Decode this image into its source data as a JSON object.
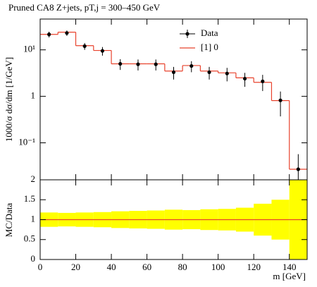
{
  "chart_data": [
    {
      "type": "histogram",
      "title": "Pruned CA8 Z+jets, pT,j = 300–450 GeV",
      "ylabel": "1000/σ dσ/dm [1/GeV]",
      "ylog": true,
      "xlim": [
        0,
        150
      ],
      "ylim": [
        0.016,
        46
      ],
      "yticks": [
        {
          "value": 10,
          "label": "10¹"
        },
        1,
        {
          "value": 0.1,
          "label": "10⁻¹"
        }
      ],
      "bins": [
        0,
        10,
        20,
        30,
        40,
        50,
        60,
        70,
        80,
        90,
        100,
        110,
        120,
        130,
        140,
        150
      ],
      "legend": "top-right",
      "series": [
        {
          "name": "Data",
          "color": "#000000",
          "values": [
            21.5,
            23,
            12,
            9.5,
            5.0,
            4.9,
            4.9,
            3.3,
            4.5,
            3.3,
            3.1,
            2.4,
            2.1,
            0.82,
            0.027
          ],
          "errors": [
            3,
            3,
            2,
            2,
            1.3,
            1.3,
            1.3,
            1,
            1.2,
            1,
            1,
            0.8,
            0.8,
            0.45,
            0.03
          ]
        },
        {
          "name": "[1] 0",
          "color": "#e8432d",
          "values": [
            21.5,
            24,
            12.3,
            9.7,
            5.0,
            5.0,
            5.0,
            3.5,
            4.6,
            3.5,
            3.2,
            2.5,
            2.0,
            0.81,
            0.027
          ]
        }
      ]
    },
    {
      "type": "ratio",
      "ylabel": "MC/Data",
      "xlabel": "m [GeV]",
      "xlim": [
        0,
        150
      ],
      "ylim": [
        0,
        2
      ],
      "yticks": [
        0,
        0.5,
        1,
        1.5,
        2
      ],
      "xticks": [
        0,
        20,
        40,
        60,
        80,
        100,
        120,
        140
      ],
      "bins": [
        0,
        10,
        20,
        30,
        40,
        50,
        60,
        70,
        80,
        90,
        100,
        110,
        120,
        130,
        140,
        150
      ],
      "reference": 1,
      "line_color": "#e8432d",
      "band_color": "#ffff00",
      "band_errors": [
        0.18,
        0.17,
        0.18,
        0.19,
        0.21,
        0.22,
        0.23,
        0.25,
        0.24,
        0.26,
        0.27,
        0.3,
        0.4,
        0.5,
        1.0
      ]
    }
  ]
}
